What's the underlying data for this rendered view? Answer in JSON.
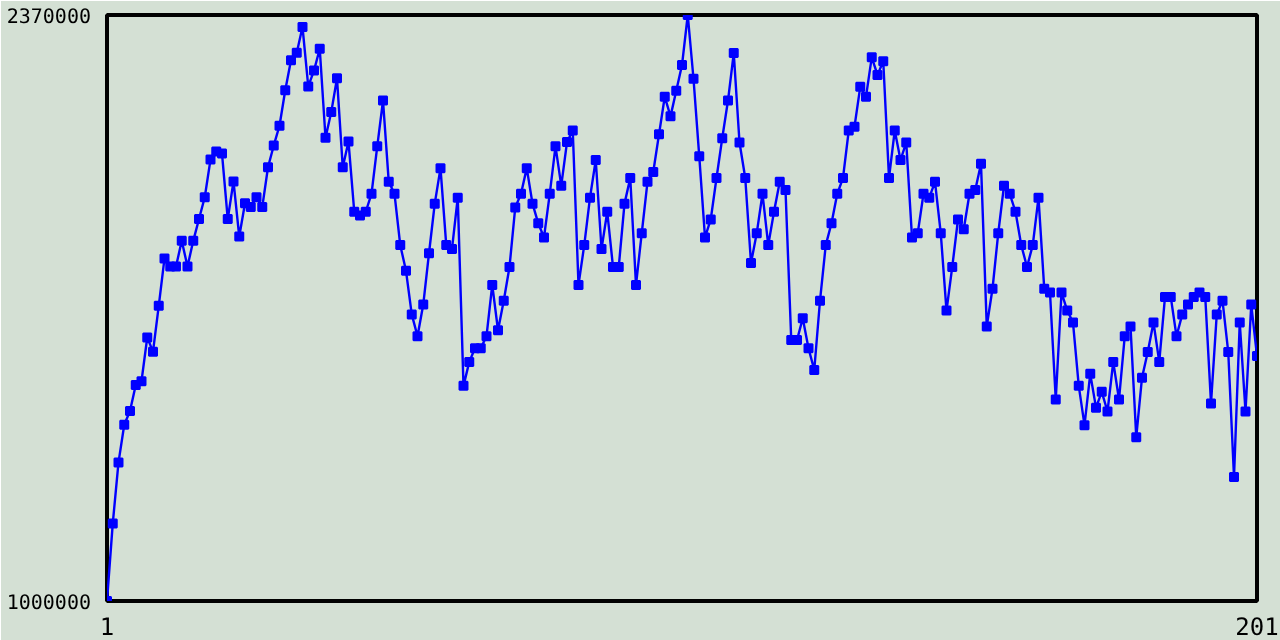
{
  "chart_data": {
    "type": "line",
    "marker": "square",
    "line_style": "solid",
    "xlim": [
      1,
      201
    ],
    "xticks": [
      1,
      201
    ],
    "ylim": [
      1000000,
      2370000
    ],
    "yticks": [
      1000000,
      2370000
    ],
    "x": [
      1,
      2,
      3,
      4,
      5,
      6,
      7,
      8,
      9,
      10,
      11,
      12,
      13,
      14,
      15,
      16,
      17,
      18,
      19,
      20,
      21,
      22,
      23,
      24,
      25,
      26,
      27,
      28,
      29,
      30,
      31,
      32,
      33,
      34,
      35,
      36,
      37,
      38,
      39,
      40,
      41,
      42,
      43,
      44,
      45,
      46,
      47,
      48,
      49,
      50,
      51,
      52,
      53,
      54,
      55,
      56,
      57,
      58,
      59,
      60,
      61,
      62,
      63,
      64,
      65,
      66,
      67,
      68,
      69,
      70,
      71,
      72,
      73,
      74,
      75,
      76,
      77,
      78,
      79,
      80,
      81,
      82,
      83,
      84,
      85,
      86,
      87,
      88,
      89,
      90,
      91,
      92,
      93,
      94,
      95,
      96,
      97,
      98,
      99,
      100,
      101,
      102,
      103,
      104,
      105,
      106,
      107,
      108,
      109,
      110,
      111,
      112,
      113,
      114,
      115,
      116,
      117,
      118,
      119,
      120,
      121,
      122,
      123,
      124,
      125,
      126,
      127,
      128,
      129,
      130,
      131,
      132,
      133,
      134,
      135,
      136,
      137,
      138,
      139,
      140,
      141,
      142,
      143,
      144,
      145,
      146,
      147,
      148,
      149,
      150,
      151,
      152,
      153,
      154,
      155,
      156,
      157,
      158,
      159,
      160,
      161,
      162,
      163,
      164,
      165,
      166,
      167,
      168,
      169,
      170,
      171,
      172,
      173,
      174,
      175,
      176,
      177,
      178,
      179,
      180,
      181,
      182,
      183,
      184,
      185,
      186,
      187,
      188,
      189,
      190,
      191,
      192,
      193,
      194,
      195,
      196,
      197,
      198,
      199,
      200,
      201
    ],
    "series": [
      {
        "color": "#0000ff",
        "values": [
          1000000,
          1181000,
          1324000,
          1412000,
          1444000,
          1505000,
          1514000,
          1616000,
          1583000,
          1690000,
          1801000,
          1782000,
          1782000,
          1842000,
          1782000,
          1842000,
          1893000,
          1944000,
          2032000,
          2051000,
          2046000,
          1893000,
          1981000,
          1852000,
          1930000,
          1921000,
          1944000,
          1921000,
          2014000,
          2065000,
          2111000,
          2194000,
          2264000,
          2282000,
          2342000,
          2203000,
          2240000,
          2291000,
          2083000,
          2143000,
          2222000,
          2014000,
          2074000,
          1910000,
          1901000,
          1910000,
          1952000,
          2063000,
          2170000,
          1980000,
          1952000,
          1832000,
          1772000,
          1670000,
          1619000,
          1693000,
          1813000,
          1929000,
          2012000,
          1832000,
          1823000,
          1943000,
          1503000,
          1559000,
          1591000,
          1591000,
          1619000,
          1739000,
          1633000,
          1702000,
          1781000,
          1920000,
          1952000,
          2012000,
          1929000,
          1883000,
          1850000,
          1952000,
          2063000,
          1971000,
          2073000,
          2100000,
          1739000,
          1832000,
          1943000,
          2031000,
          1823000,
          1910000,
          1781000,
          1781000,
          1929000,
          1989000,
          1739000,
          1860000,
          1980000,
          2003000,
          2091000,
          2179000,
          2133000,
          2193000,
          2253000,
          2370000,
          2221000,
          2040000,
          1850000,
          1892000,
          1989000,
          2082000,
          2170000,
          2281000,
          2072000,
          1989000,
          1790000,
          1860000,
          1952000,
          1832000,
          1910000,
          1980000,
          1961000,
          1610000,
          1610000,
          1661000,
          1591000,
          1540000,
          1702000,
          1832000,
          1883000,
          1952000,
          1989000,
          2100000,
          2109000,
          2202000,
          2179000,
          2271000,
          2230000,
          2262000,
          1989000,
          2100000,
          2031000,
          2072000,
          1850000,
          1860000,
          1952000,
          1943000,
          1980000,
          1860000,
          1679000,
          1781000,
          1892000,
          1869000,
          1952000,
          1961000,
          2022000,
          1642000,
          1730000,
          1860000,
          1971000,
          1952000,
          1910000,
          1832000,
          1781000,
          1832000,
          1943000,
          1730000,
          1721000,
          1471000,
          1721000,
          1679000,
          1651000,
          1503000,
          1411000,
          1531000,
          1452000,
          1489000,
          1443000,
          1559000,
          1471000,
          1619000,
          1642000,
          1383000,
          1522000,
          1582000,
          1651000,
          1559000,
          1711000,
          1711000,
          1619000,
          1670000,
          1693000,
          1711000,
          1721000,
          1711000,
          1462000,
          1670000,
          1702000,
          1582000,
          1290000,
          1651000,
          1443000,
          1693000,
          1573000
        ]
      }
    ]
  }
}
